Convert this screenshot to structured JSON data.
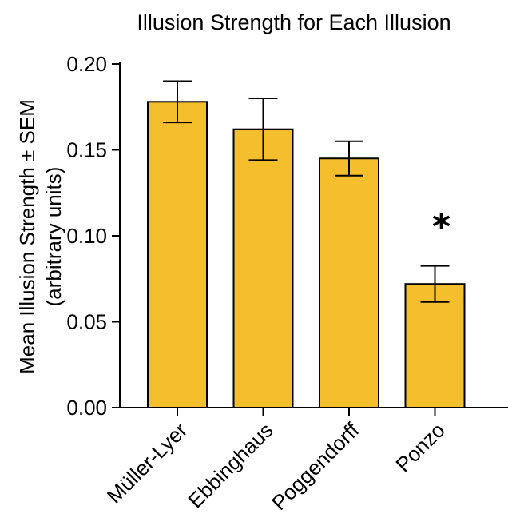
{
  "chart_data": {
    "type": "bar",
    "title": "Illusion Strength for Each Illusion",
    "ylabel_line1": "Mean Illusion Strength ± SEM",
    "ylabel_line2": "(arbitrary units)",
    "xlabel": "",
    "ylim": [
      0,
      0.2
    ],
    "yticks": [
      "0.00",
      "0.05",
      "0.10",
      "0.15",
      "0.20"
    ],
    "categories": [
      "Müller-Lyer",
      "Ebbinghaus",
      "Poggendorff",
      "Ponzo"
    ],
    "values": [
      0.178,
      0.162,
      0.145,
      0.072
    ],
    "errors": [
      0.012,
      0.018,
      0.01,
      0.0105
    ],
    "annotations": [
      {
        "category": "Ponzo",
        "text": "*"
      }
    ],
    "bar_color": "#F4BE2C",
    "edge_color": "#000000",
    "grid": false,
    "legend": "none"
  }
}
